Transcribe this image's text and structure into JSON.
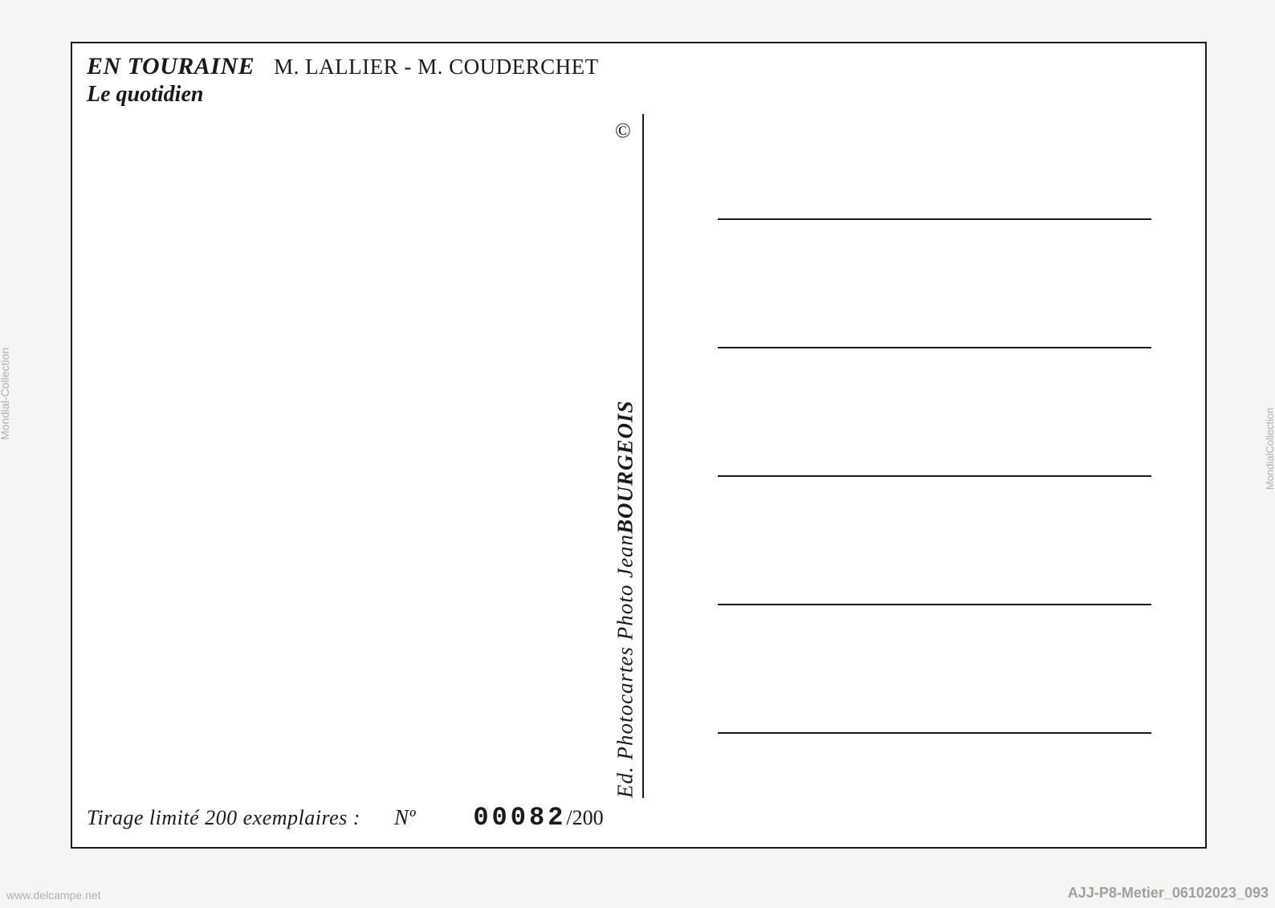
{
  "header": {
    "title": "EN TOURAINE",
    "authors": "M. LALLIER  -  M. COUDERCHET",
    "subtitle": "Le quotidien"
  },
  "publisher": {
    "prefix": "Ed. Photocartes   Photo Jean ",
    "name": "BOURGEOIS",
    "copyright": "©"
  },
  "footer": {
    "label": "Tirage limité 200 exemplaires :",
    "no_label": "Nº",
    "number": "00082",
    "total": "/200"
  },
  "watermarks": {
    "left": "Mondial-Collection",
    "bottom_left": "www.delcampe.net",
    "bottom_right": "AJJ-P8-Metier_06102023_093",
    "right": "MondialCollection"
  },
  "layout": {
    "address_line_count": 5,
    "address_line_spacing": 158
  },
  "colors": {
    "background": "#f5f5f3",
    "card_background": "#ffffff",
    "text": "#1a1a1a",
    "watermark": "#b0b0b0"
  }
}
